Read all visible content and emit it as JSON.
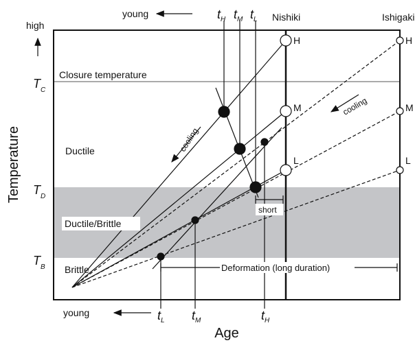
{
  "top_arrow_label": "young",
  "top_ages": [
    {
      "main": "t",
      "sub": "H"
    },
    {
      "main": "t",
      "sub": "M"
    },
    {
      "main": "t",
      "sub": "L"
    }
  ],
  "sites": [
    "Nishiki",
    "Ishigaki"
  ],
  "high": "high",
  "temperatures": [
    {
      "main": "T",
      "sub": "C"
    },
    {
      "main": "T",
      "sub": "D"
    },
    {
      "main": "T",
      "sub": "B"
    }
  ],
  "closure": "Closure temperature",
  "zones": [
    "Ductile",
    "Ductile/Brittle",
    "Brittle"
  ],
  "cooling": [
    "cooling",
    "cooling"
  ],
  "nishiki_points": [
    "H",
    "M",
    "L"
  ],
  "ishigaki_points": [
    "H",
    "M",
    "L"
  ],
  "short": "short",
  "deformation": "Deformation (long duration)",
  "bottom_arrow_label": "young",
  "bottom_ages": [
    {
      "main": "t",
      "sub": "L"
    },
    {
      "main": "t",
      "sub": "M"
    },
    {
      "main": "t",
      "sub": "H"
    }
  ],
  "x_label": "Age",
  "y_label": "Temperature"
}
